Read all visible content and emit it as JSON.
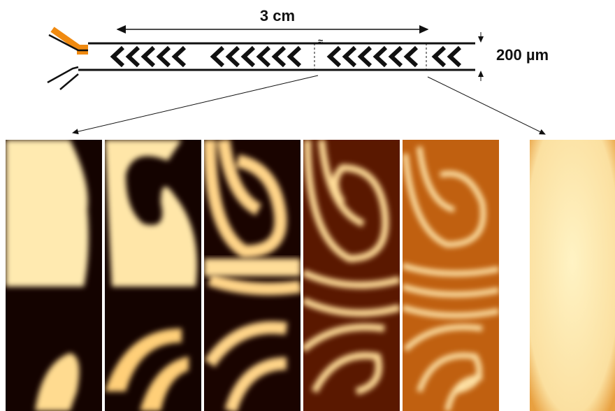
{
  "labels": {
    "length": "3 cm",
    "width": "200 µm"
  }
}
